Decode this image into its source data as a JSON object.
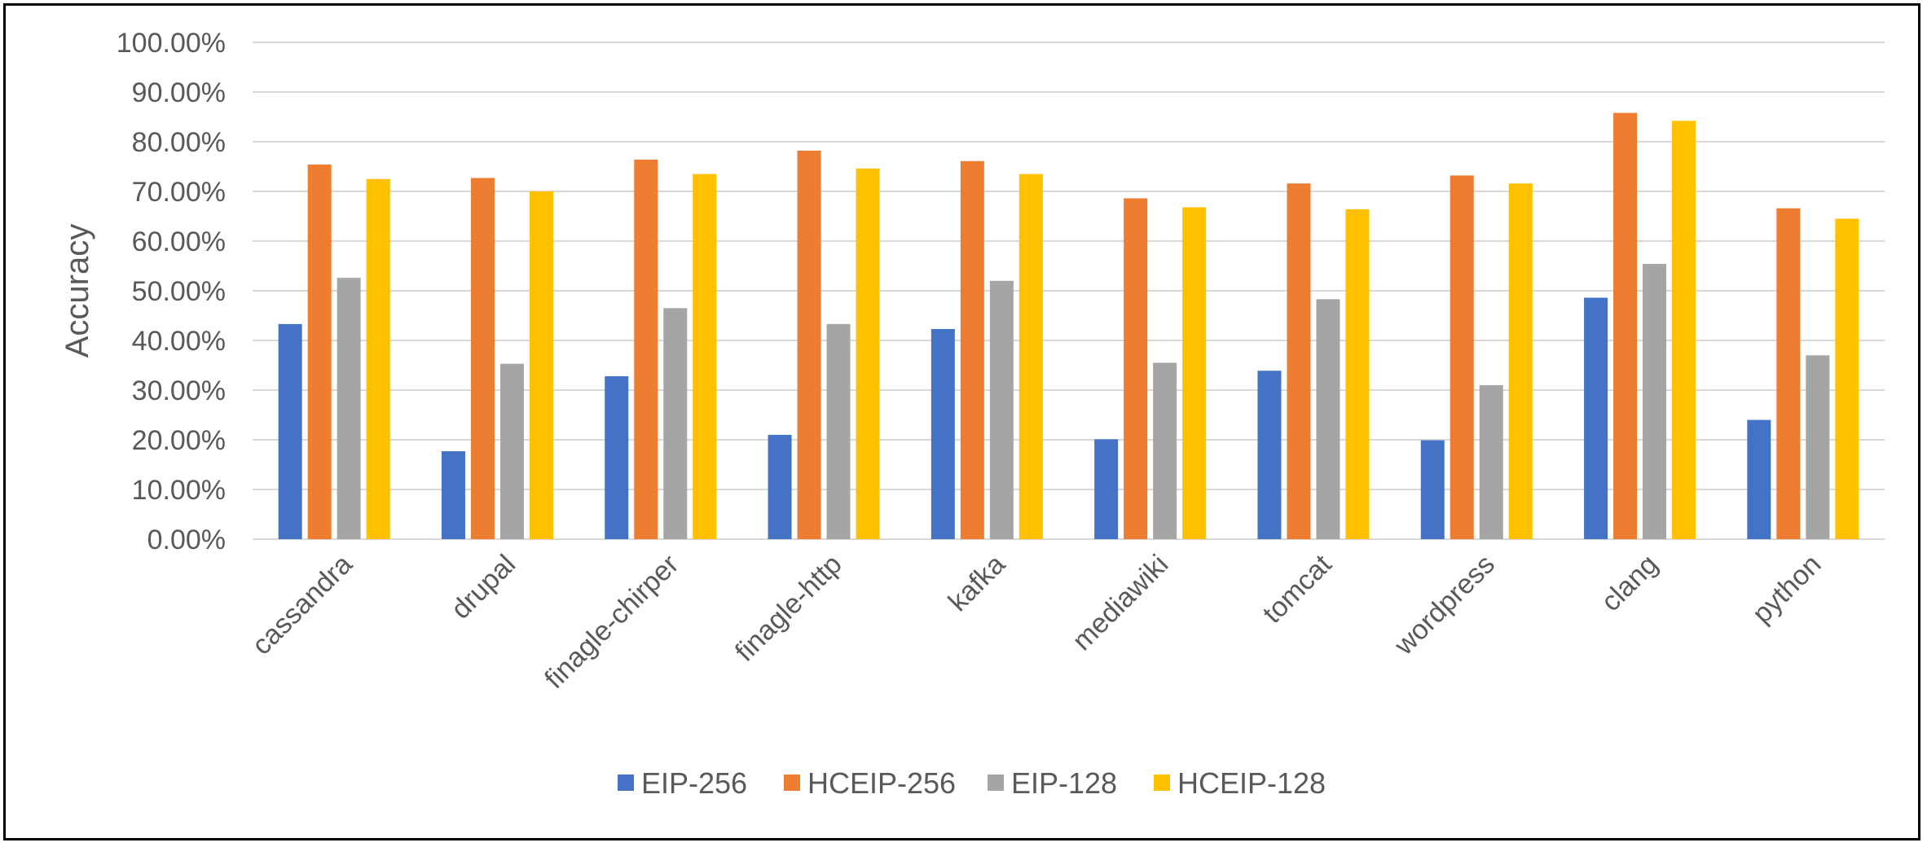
{
  "chart_data": {
    "type": "bar",
    "title": "",
    "xlabel": "",
    "ylabel": "Accuracy",
    "ylim": [
      0,
      100
    ],
    "y_tick_step": 10,
    "y_tick_labels": [
      "0.00%",
      "10.00%",
      "20.00%",
      "30.00%",
      "40.00%",
      "50.00%",
      "60.00%",
      "70.00%",
      "80.00%",
      "90.00%",
      "100.00%"
    ],
    "grid": true,
    "legend_position": "bottom",
    "categories": [
      "cassandra",
      "drupal",
      "finagle-chirper",
      "finagle-http",
      "kafka",
      "mediawiki",
      "tomcat",
      "wordpress",
      "clang",
      "python"
    ],
    "series": [
      {
        "name": "EIP-256",
        "color": "#4472C4",
        "values": [
          43.3,
          17.7,
          32.8,
          21.0,
          42.3,
          20.1,
          33.9,
          19.9,
          48.6,
          24.0
        ]
      },
      {
        "name": "HCEIP-256",
        "color": "#ED7D31",
        "values": [
          75.4,
          72.7,
          76.4,
          78.2,
          76.1,
          68.6,
          71.6,
          73.2,
          85.8,
          66.6
        ]
      },
      {
        "name": "EIP-128",
        "color": "#A5A5A5",
        "values": [
          52.6,
          35.3,
          46.5,
          43.3,
          52.0,
          35.5,
          48.3,
          31.0,
          55.4,
          37.0
        ]
      },
      {
        "name": "HCEIP-128",
        "color": "#FFC000",
        "values": [
          72.5,
          70.0,
          73.5,
          74.6,
          73.5,
          66.8,
          66.4,
          71.6,
          84.2,
          64.5
        ]
      }
    ]
  }
}
